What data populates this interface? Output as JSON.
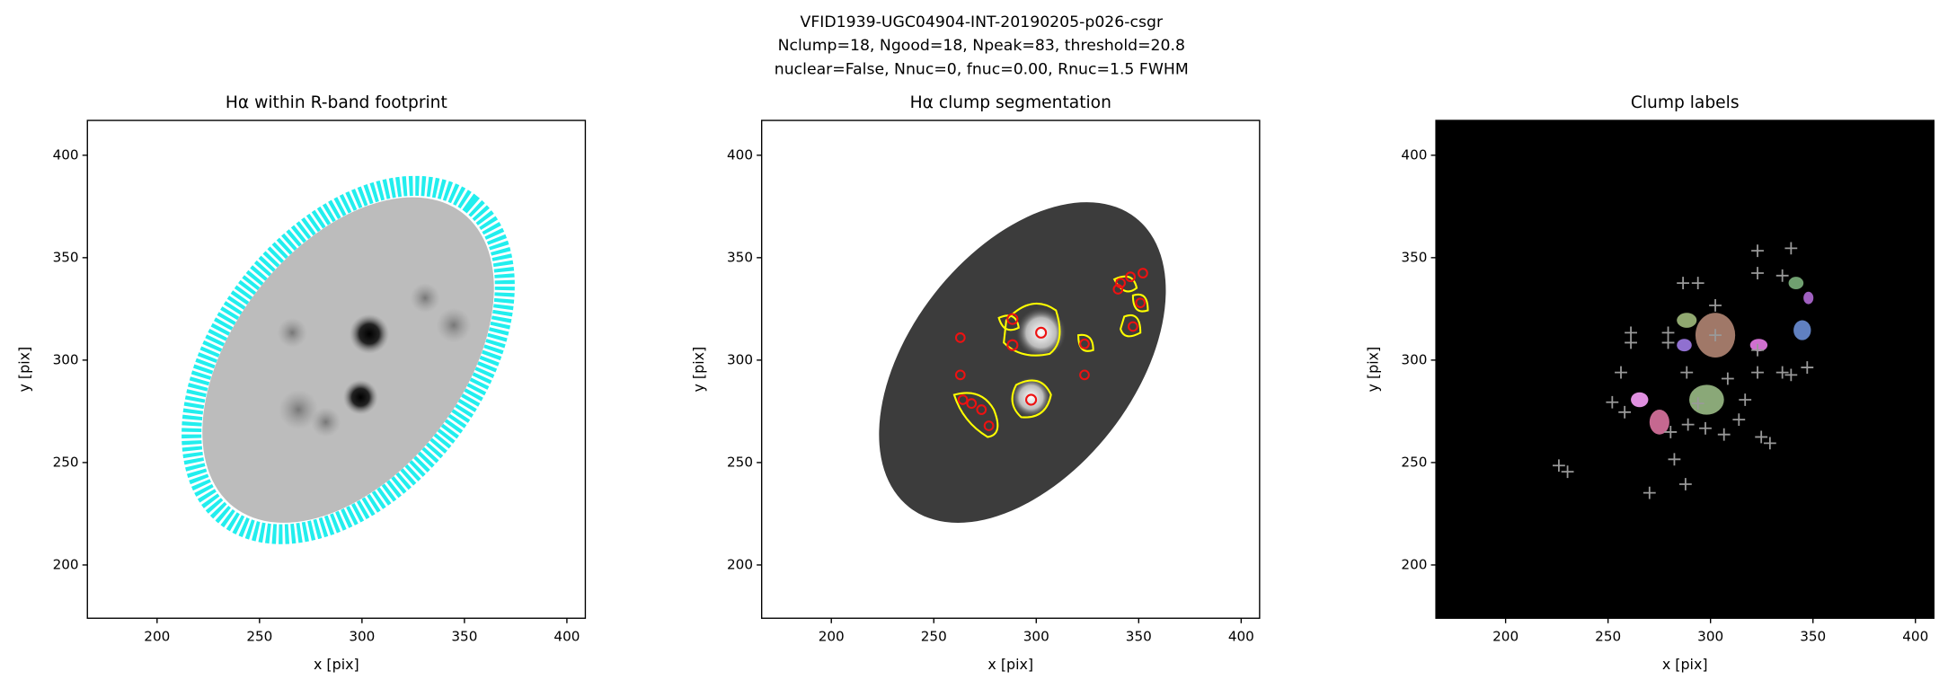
{
  "suptitle": [
    "VFID1939-UGC04904-INT-20190205-p026-csgr",
    "Nclump=18, Ngood=18, Npeak=83, threshold=20.8",
    "nuclear=False, Nnuc=0, fnuc=0.00, Rnuc=1.5 FWHM"
  ],
  "chart_data": [
    {
      "type": "image",
      "title": "Hα within R-band footprint",
      "xlabel": "x [pix]",
      "ylabel": "y [pix]",
      "xlim": [
        166,
        409
      ],
      "ylim": [
        174,
        417
      ],
      "xticks": [
        200,
        250,
        300,
        350,
        400
      ],
      "yticks": [
        200,
        250,
        300,
        350,
        400
      ]
    },
    {
      "type": "image",
      "title": "Hα clump segmentation",
      "xlabel": "x [pix]",
      "ylabel": "y [pix]",
      "xlim": [
        166,
        409
      ],
      "ylim": [
        174,
        417
      ],
      "xticks": [
        200,
        250,
        300,
        350,
        400
      ],
      "yticks": [
        200,
        250,
        300,
        350,
        400
      ]
    },
    {
      "type": "image",
      "title": "Clump labels",
      "xlabel": "x [pix]",
      "ylabel": "y [pix]",
      "xlim": [
        166,
        409
      ],
      "ylim": [
        174,
        417
      ],
      "xticks": [
        200,
        250,
        300,
        350,
        400
      ],
      "yticks": [
        200,
        250,
        300,
        350,
        400
      ]
    }
  ]
}
